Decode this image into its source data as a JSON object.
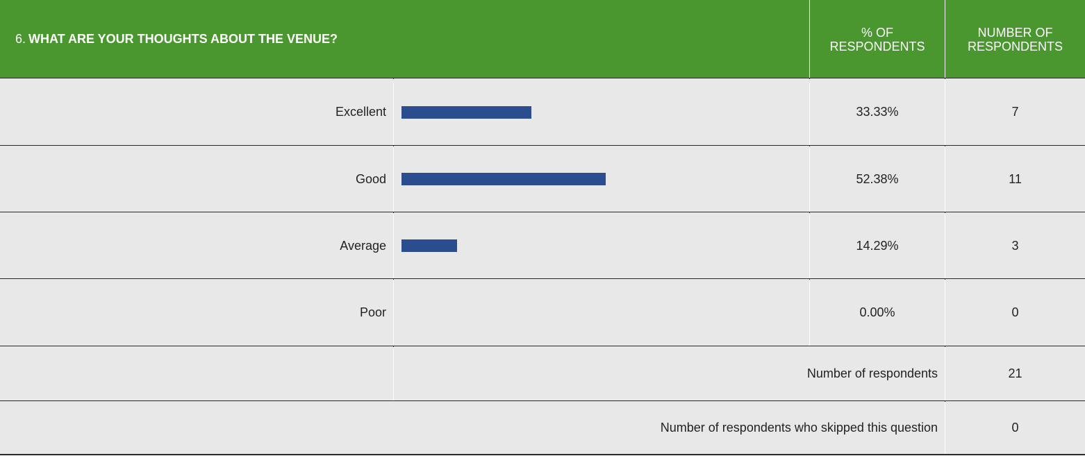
{
  "header": {
    "number": "6.",
    "question": "WHAT ARE YOUR THOUGHTS ABOUT THE VENUE?",
    "percent_heading": "% OF RESPONDENTS",
    "count_heading": "NUMBER OF RESPONDENTS"
  },
  "rows": [
    {
      "label": "Excellent",
      "value": 33.33,
      "value_label": "33.33%",
      "count": 7
    },
    {
      "label": "Good",
      "value": 52.38,
      "value_label": "52.38%",
      "count": 11
    },
    {
      "label": "Average",
      "value": 14.29,
      "value_label": "14.29%",
      "count": 3
    },
    {
      "label": "Poor",
      "value": 0,
      "value_label": "0.00%",
      "count": 0
    }
  ],
  "totals": [
    {
      "label": "Number of respondents",
      "count": 21
    },
    {
      "label": "Number of respondents who skipped this question",
      "count": 0
    }
  ]
}
